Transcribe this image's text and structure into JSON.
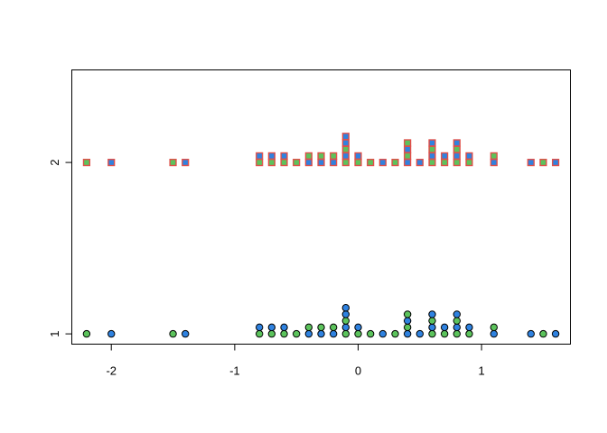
{
  "chart_data": {
    "type": "scatter",
    "title": "",
    "xlabel": "",
    "ylabel": "",
    "xlim": [
      -2.32,
      1.72
    ],
    "ylim": [
      0.94,
      2.54
    ],
    "x_ticks": [
      -2,
      -1,
      0,
      1
    ],
    "y_ticks": [
      1,
      2
    ],
    "grid": false,
    "legend": "none",
    "stack_step": 0.038,
    "series": [
      {
        "y": 1,
        "marker": "circle",
        "stroke": "#000000",
        "points": [
          {
            "x": -2.2,
            "color": "#5cc35c"
          },
          {
            "x": -2.0,
            "color": "#2f82e0"
          },
          {
            "x": -1.5,
            "color": "#5cc35c"
          },
          {
            "x": -1.4,
            "color": "#2f82e0"
          },
          {
            "x": -0.8,
            "color": "#5cc35c"
          },
          {
            "x": -0.8,
            "color": "#2f82e0"
          },
          {
            "x": -0.7,
            "color": "#5cc35c"
          },
          {
            "x": -0.7,
            "color": "#2f82e0"
          },
          {
            "x": -0.6,
            "color": "#5cc35c"
          },
          {
            "x": -0.6,
            "color": "#2f82e0"
          },
          {
            "x": -0.5,
            "color": "#5cc35c"
          },
          {
            "x": -0.4,
            "color": "#2f82e0"
          },
          {
            "x": -0.4,
            "color": "#5cc35c"
          },
          {
            "x": -0.3,
            "color": "#2f82e0"
          },
          {
            "x": -0.3,
            "color": "#5cc35c"
          },
          {
            "x": -0.2,
            "color": "#2f82e0"
          },
          {
            "x": -0.2,
            "color": "#5cc35c"
          },
          {
            "x": -0.1,
            "color": "#5cc35c"
          },
          {
            "x": -0.1,
            "color": "#2f82e0"
          },
          {
            "x": -0.1,
            "color": "#5cc35c"
          },
          {
            "x": -0.1,
            "color": "#2f82e0"
          },
          {
            "x": -0.1,
            "color": "#2f82e0"
          },
          {
            "x": 0.0,
            "color": "#5cc35c"
          },
          {
            "x": 0.0,
            "color": "#2f82e0"
          },
          {
            "x": 0.1,
            "color": "#5cc35c"
          },
          {
            "x": 0.2,
            "color": "#2f82e0"
          },
          {
            "x": 0.3,
            "color": "#5cc35c"
          },
          {
            "x": 0.4,
            "color": "#2f82e0"
          },
          {
            "x": 0.4,
            "color": "#5cc35c"
          },
          {
            "x": 0.4,
            "color": "#2f82e0"
          },
          {
            "x": 0.4,
            "color": "#5cc35c"
          },
          {
            "x": 0.5,
            "color": "#2f82e0"
          },
          {
            "x": 0.6,
            "color": "#5cc35c"
          },
          {
            "x": 0.6,
            "color": "#2f82e0"
          },
          {
            "x": 0.6,
            "color": "#5cc35c"
          },
          {
            "x": 0.6,
            "color": "#2f82e0"
          },
          {
            "x": 0.7,
            "color": "#5cc35c"
          },
          {
            "x": 0.7,
            "color": "#2f82e0"
          },
          {
            "x": 0.8,
            "color": "#5cc35c"
          },
          {
            "x": 0.8,
            "color": "#2f82e0"
          },
          {
            "x": 0.8,
            "color": "#5cc35c"
          },
          {
            "x": 0.8,
            "color": "#2f82e0"
          },
          {
            "x": 0.9,
            "color": "#5cc35c"
          },
          {
            "x": 0.9,
            "color": "#2f82e0"
          },
          {
            "x": 1.1,
            "color": "#2f82e0"
          },
          {
            "x": 1.1,
            "color": "#5cc35c"
          },
          {
            "x": 1.4,
            "color": "#2f82e0"
          },
          {
            "x": 1.5,
            "color": "#5cc35c"
          },
          {
            "x": 1.6,
            "color": "#2f82e0"
          }
        ]
      },
      {
        "y": 2,
        "marker": "square",
        "stroke": "#e0504a",
        "points": [
          {
            "x": -2.2,
            "color": "#5cc35c"
          },
          {
            "x": -2.0,
            "color": "#2f82e0"
          },
          {
            "x": -1.5,
            "color": "#5cc35c"
          },
          {
            "x": -1.4,
            "color": "#2f82e0"
          },
          {
            "x": -0.8,
            "color": "#5cc35c"
          },
          {
            "x": -0.8,
            "color": "#2f82e0"
          },
          {
            "x": -0.7,
            "color": "#5cc35c"
          },
          {
            "x": -0.7,
            "color": "#2f82e0"
          },
          {
            "x": -0.6,
            "color": "#5cc35c"
          },
          {
            "x": -0.6,
            "color": "#2f82e0"
          },
          {
            "x": -0.5,
            "color": "#5cc35c"
          },
          {
            "x": -0.4,
            "color": "#2f82e0"
          },
          {
            "x": -0.4,
            "color": "#5cc35c"
          },
          {
            "x": -0.3,
            "color": "#2f82e0"
          },
          {
            "x": -0.3,
            "color": "#5cc35c"
          },
          {
            "x": -0.2,
            "color": "#2f82e0"
          },
          {
            "x": -0.2,
            "color": "#5cc35c"
          },
          {
            "x": -0.1,
            "color": "#5cc35c"
          },
          {
            "x": -0.1,
            "color": "#2f82e0"
          },
          {
            "x": -0.1,
            "color": "#5cc35c"
          },
          {
            "x": -0.1,
            "color": "#2f82e0"
          },
          {
            "x": -0.1,
            "color": "#2f82e0"
          },
          {
            "x": 0.0,
            "color": "#5cc35c"
          },
          {
            "x": 0.0,
            "color": "#2f82e0"
          },
          {
            "x": 0.1,
            "color": "#5cc35c"
          },
          {
            "x": 0.2,
            "color": "#2f82e0"
          },
          {
            "x": 0.3,
            "color": "#5cc35c"
          },
          {
            "x": 0.4,
            "color": "#2f82e0"
          },
          {
            "x": 0.4,
            "color": "#5cc35c"
          },
          {
            "x": 0.4,
            "color": "#2f82e0"
          },
          {
            "x": 0.4,
            "color": "#5cc35c"
          },
          {
            "x": 0.5,
            "color": "#2f82e0"
          },
          {
            "x": 0.6,
            "color": "#5cc35c"
          },
          {
            "x": 0.6,
            "color": "#2f82e0"
          },
          {
            "x": 0.6,
            "color": "#5cc35c"
          },
          {
            "x": 0.6,
            "color": "#2f82e0"
          },
          {
            "x": 0.7,
            "color": "#5cc35c"
          },
          {
            "x": 0.7,
            "color": "#2f82e0"
          },
          {
            "x": 0.8,
            "color": "#5cc35c"
          },
          {
            "x": 0.8,
            "color": "#2f82e0"
          },
          {
            "x": 0.8,
            "color": "#5cc35c"
          },
          {
            "x": 0.8,
            "color": "#2f82e0"
          },
          {
            "x": 0.9,
            "color": "#5cc35c"
          },
          {
            "x": 0.9,
            "color": "#2f82e0"
          },
          {
            "x": 1.1,
            "color": "#2f82e0"
          },
          {
            "x": 1.1,
            "color": "#5cc35c"
          },
          {
            "x": 1.4,
            "color": "#2f82e0"
          },
          {
            "x": 1.5,
            "color": "#5cc35c"
          },
          {
            "x": 1.6,
            "color": "#2f82e0"
          }
        ]
      }
    ]
  }
}
